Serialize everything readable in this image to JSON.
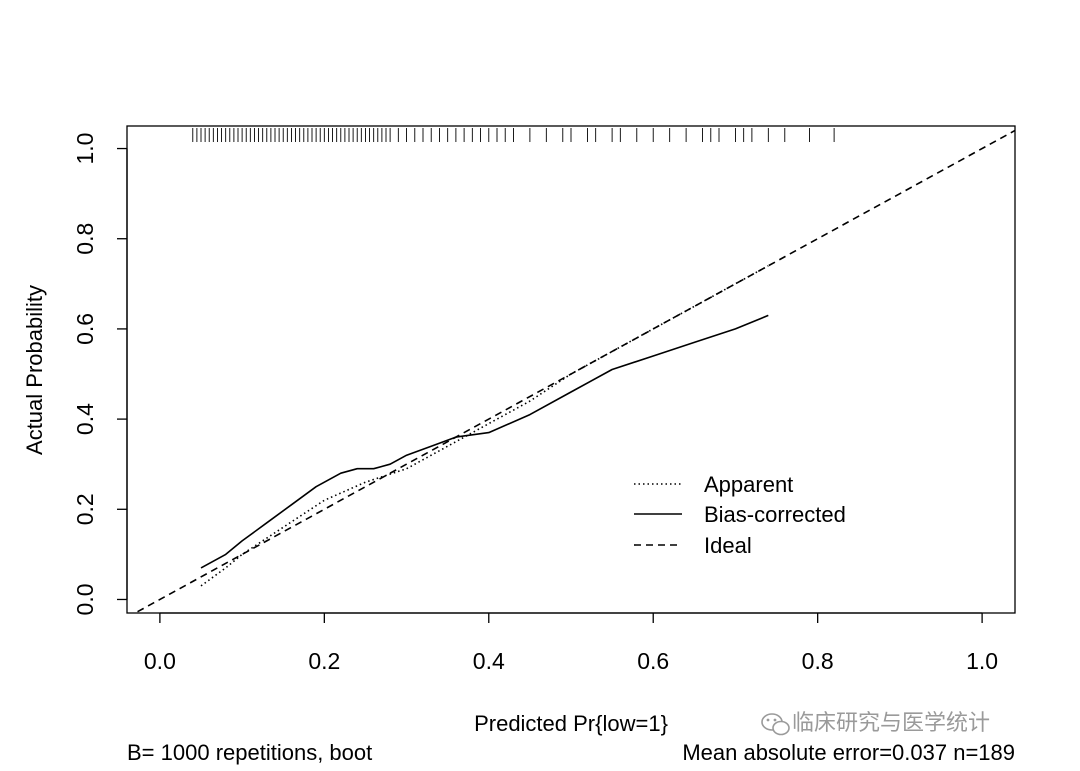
{
  "chart_data": {
    "type": "line",
    "xlabel": "Predicted Pr{low=1}",
    "ylabel": "Actual Probability",
    "xlim": [
      -0.04,
      1.04
    ],
    "ylim": [
      -0.03,
      1.05
    ],
    "x_ticks": [
      "0.0",
      "0.2",
      "0.4",
      "0.6",
      "0.8",
      "1.0"
    ],
    "x_tick_values": [
      0,
      0.2,
      0.4,
      0.6,
      0.8,
      1.0
    ],
    "y_ticks": [
      "0.0",
      "0.2",
      "0.4",
      "0.6",
      "0.8",
      "1.0"
    ],
    "y_tick_values": [
      0,
      0.2,
      0.4,
      0.6,
      0.8,
      1.0
    ],
    "rug": {
      "y": 1.03,
      "x": [
        0.04,
        0.045,
        0.05,
        0.055,
        0.06,
        0.065,
        0.07,
        0.075,
        0.08,
        0.085,
        0.09,
        0.095,
        0.1,
        0.105,
        0.11,
        0.115,
        0.12,
        0.125,
        0.13,
        0.135,
        0.14,
        0.145,
        0.15,
        0.155,
        0.16,
        0.165,
        0.17,
        0.175,
        0.18,
        0.185,
        0.19,
        0.195,
        0.2,
        0.205,
        0.21,
        0.215,
        0.22,
        0.225,
        0.23,
        0.235,
        0.24,
        0.245,
        0.25,
        0.255,
        0.26,
        0.265,
        0.27,
        0.275,
        0.28,
        0.29,
        0.3,
        0.31,
        0.32,
        0.33,
        0.34,
        0.35,
        0.36,
        0.37,
        0.38,
        0.39,
        0.4,
        0.41,
        0.42,
        0.43,
        0.45,
        0.47,
        0.49,
        0.5,
        0.52,
        0.53,
        0.55,
        0.56,
        0.58,
        0.6,
        0.62,
        0.64,
        0.66,
        0.67,
        0.68,
        0.7,
        0.71,
        0.72,
        0.74,
        0.76,
        0.79,
        0.82
      ]
    },
    "series": [
      {
        "name": "Apparent",
        "style": "dotted",
        "x": [
          0.05,
          0.08,
          0.1,
          0.15,
          0.2,
          0.25,
          0.3,
          0.35,
          0.4,
          0.45,
          0.5,
          0.55,
          0.6,
          0.65,
          0.7,
          0.74
        ],
        "y": [
          0.03,
          0.07,
          0.1,
          0.16,
          0.22,
          0.26,
          0.29,
          0.34,
          0.39,
          0.44,
          0.5,
          0.55,
          0.6,
          0.65,
          0.7,
          0.74
        ]
      },
      {
        "name": "Bias-corrected",
        "style": "solid",
        "x": [
          0.05,
          0.08,
          0.1,
          0.13,
          0.16,
          0.19,
          0.22,
          0.24,
          0.26,
          0.28,
          0.3,
          0.33,
          0.36,
          0.4,
          0.45,
          0.5,
          0.55,
          0.6,
          0.65,
          0.7,
          0.74
        ],
        "y": [
          0.07,
          0.1,
          0.13,
          0.17,
          0.21,
          0.25,
          0.28,
          0.29,
          0.29,
          0.3,
          0.32,
          0.34,
          0.36,
          0.37,
          0.41,
          0.46,
          0.51,
          0.54,
          0.57,
          0.6,
          0.63
        ]
      },
      {
        "name": "Ideal",
        "style": "dashed",
        "x": [
          -0.04,
          1.04
        ],
        "y": [
          -0.04,
          1.04
        ]
      }
    ],
    "legend": {
      "position": "bottom-right",
      "entries": [
        "Apparent",
        "Bias-corrected",
        "Ideal"
      ]
    },
    "footer_left": "B= 1000 repetitions, boot",
    "footer_right": "Mean absolute error=0.037 n=189"
  },
  "watermark": "临床研究与医学统计",
  "colors": {
    "line": "#000000",
    "background": "#ffffff",
    "watermark": "#9a9a9a"
  }
}
